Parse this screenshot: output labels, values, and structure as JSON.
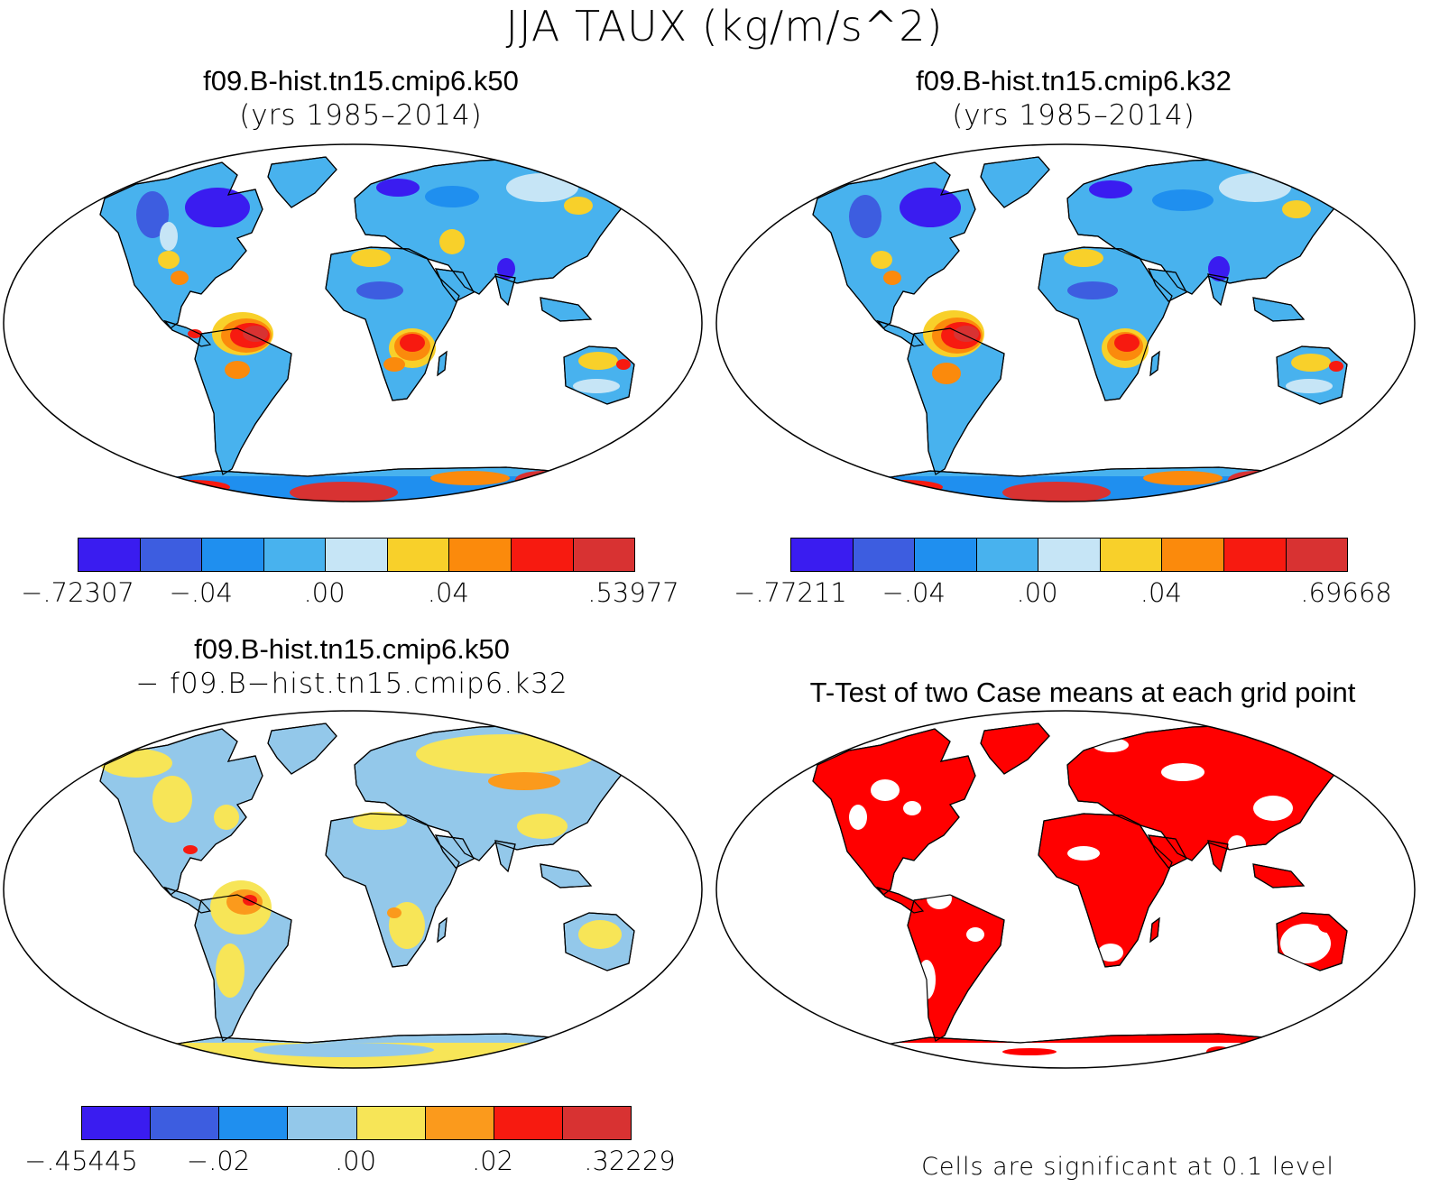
{
  "title": "JJA TAUX (kg/m/s^2)",
  "panels": [
    {
      "title_line1": "f09.B-hist.tn15.cmip6.k50",
      "title_line2": "(yrs 1985–2014)",
      "colorbar": {
        "colors": [
          "#3a1cf0",
          "#3d5de0",
          "#1f8fef",
          "#48b2ee",
          "#c6e5f6",
          "#f8d02a",
          "#fb8a0c",
          "#f71a10",
          "#d83232"
        ],
        "labels": [
          "−.72307",
          "−.04",
          ".00",
          ".04",
          ".53977"
        ]
      }
    },
    {
      "title_line1": "f09.B-hist.tn15.cmip6.k32",
      "title_line2": "(yrs 1985–2014)",
      "colorbar": {
        "colors": [
          "#3a1cf0",
          "#3d5de0",
          "#1f8fef",
          "#48b2ee",
          "#c6e5f6",
          "#f8d02a",
          "#fb8a0c",
          "#f71a10",
          "#d83232"
        ],
        "labels": [
          "−.77211",
          "−.04",
          ".00",
          ".04",
          ".69668"
        ]
      }
    },
    {
      "title_line1": "f09.B-hist.tn15.cmip6.k50",
      "title_line2": "− f09.B−hist.tn15.cmip6.k32",
      "colorbar": {
        "colors": [
          "#3a1cf0",
          "#3d5de0",
          "#1f8fef",
          "#93c8ea",
          "#f7e557",
          "#fb9a1c",
          "#f71a10",
          "#d83232"
        ],
        "labels": [
          "−.45445",
          "−.02",
          ".00",
          ".02",
          ".32229"
        ]
      }
    },
    {
      "title_line1": "T-Test of two Case means at each grid point",
      "significance_color": "#ff0000",
      "note": "Cells are significant at 0.1 level"
    }
  ]
}
